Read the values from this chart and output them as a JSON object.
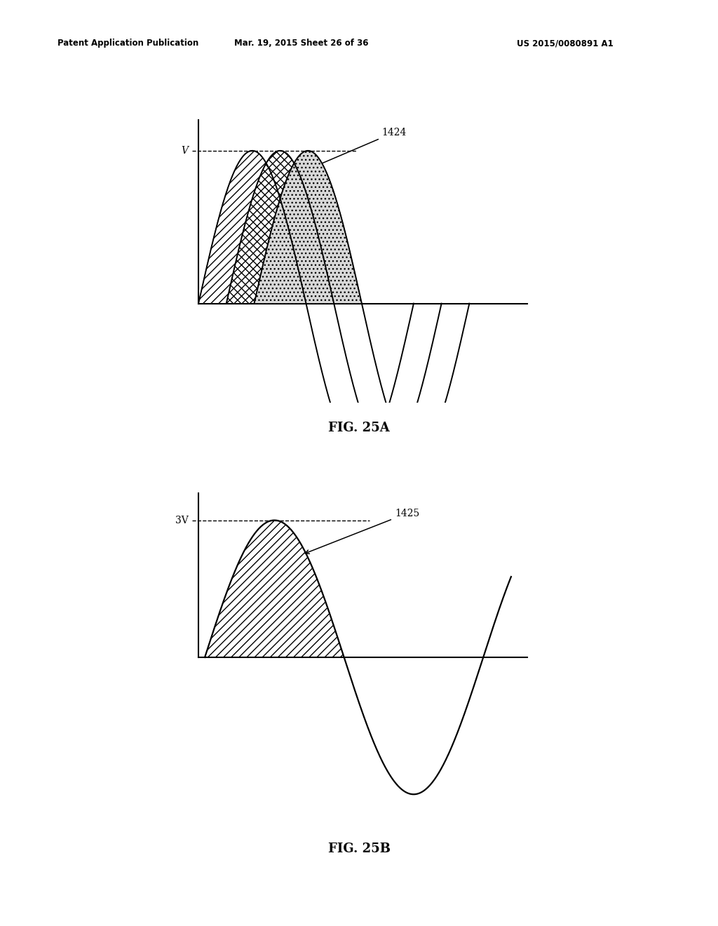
{
  "bg_color": "#ffffff",
  "header_left": "Patent Application Publication",
  "header_mid": "Mar. 19, 2015 Sheet 26 of 36",
  "header_right": "US 2015/0080891 A1",
  "fig25a_label": "FIG. 25A",
  "fig25b_label": "FIG. 25B",
  "label_1424": "1424",
  "label_1425": "1425",
  "label_V": "V",
  "label_3V": "3V",
  "fig_a_offsets": [
    0.0,
    0.22,
    0.44
  ],
  "fig_a_period": 0.85,
  "fig_a_amp": 1.0,
  "fig_b_period": 1.1,
  "fig_b_amp": 1.0
}
